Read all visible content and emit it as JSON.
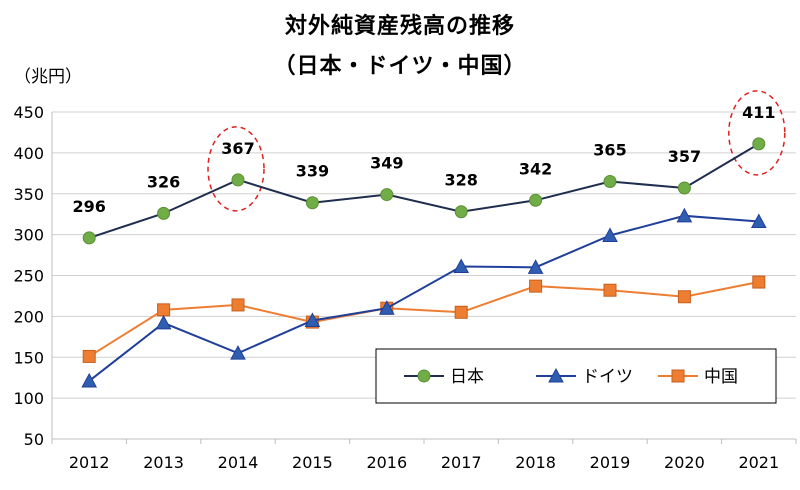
{
  "chart_data": {
    "type": "line",
    "title": "対外純資産残高の推移",
    "subtitle": "（日本・ドイツ・中国）",
    "ylabel": "（兆円）",
    "xlabel": "",
    "categories": [
      "2012",
      "2013",
      "2014",
      "2015",
      "2016",
      "2017",
      "2018",
      "2019",
      "2020",
      "2021"
    ],
    "ylim": [
      50,
      450
    ],
    "yticks": [
      50,
      100,
      150,
      200,
      250,
      300,
      350,
      400,
      450
    ],
    "grid": true,
    "legend_position": "bottom-right",
    "series": [
      {
        "name": "日本",
        "color": "#70ad47",
        "line_color": "#1f2d4e",
        "marker": "circle",
        "values": [
          296,
          326,
          367,
          339,
          349,
          328,
          342,
          365,
          357,
          411
        ],
        "labels_shown": true
      },
      {
        "name": "ドイツ",
        "color": "#2f5eb0",
        "line_color": "#1f3f9a",
        "marker": "triangle",
        "values": [
          121,
          192,
          155,
          195,
          210,
          261,
          260,
          299,
          323,
          316
        ],
        "labels_shown": false
      },
      {
        "name": "中国",
        "color": "#ed7d31",
        "line_color": "#ed7d31",
        "marker": "square",
        "values": [
          151,
          208,
          214,
          193,
          210,
          205,
          237,
          232,
          224,
          242
        ],
        "labels_shown": false
      }
    ],
    "annotations": [
      {
        "type": "dashed-ellipse",
        "category": "2014",
        "color": "#e02020"
      },
      {
        "type": "dashed-ellipse",
        "category": "2021",
        "color": "#e02020"
      }
    ]
  }
}
